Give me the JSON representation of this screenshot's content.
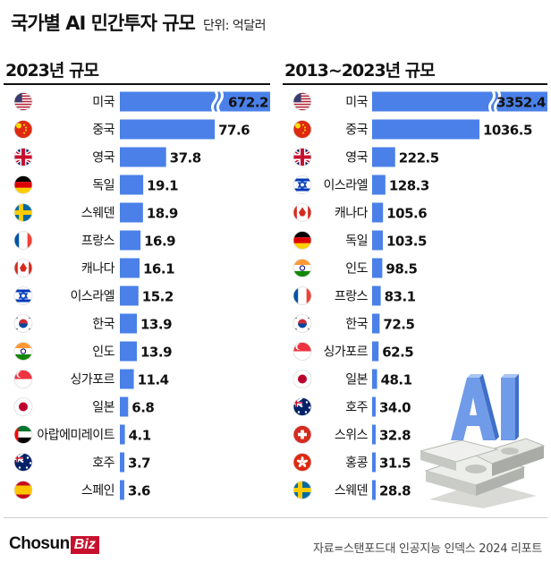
{
  "header": {
    "title": "국가별 AI 민간투자 규모",
    "unit": "단위: 억달러"
  },
  "footer": {
    "brand_main": "Chosun",
    "brand_accent": "Biz",
    "source": "자료=스탠포드대 인공지능 인덱스 2024 리포트"
  },
  "colors": {
    "bar": "#4a80e8",
    "brand_accent": "#c8102e"
  },
  "chart_data": [
    {
      "type": "bar",
      "orientation": "horizontal",
      "title": "2023년  규모",
      "axis_break": true,
      "categories": [
        "미국",
        "중국",
        "영국",
        "독일",
        "스웨덴",
        "프랑스",
        "캐나다",
        "이스라엘",
        "한국",
        "인도",
        "싱가포르",
        "일본",
        "아랍에미레이트",
        "호주",
        "스페인"
      ],
      "values": [
        672.2,
        77.6,
        37.8,
        19.1,
        18.9,
        16.9,
        16.1,
        15.2,
        13.9,
        13.9,
        11.4,
        6.8,
        4.1,
        3.7,
        3.6
      ],
      "value_labels": [
        "672.2",
        "77.6",
        "37.8",
        "19.1",
        "18.9",
        "16.9",
        "16.1",
        "15.2",
        "13.9",
        "13.9",
        "11.4",
        "6.8",
        "4.1",
        "3.7",
        "3.6"
      ],
      "flags": [
        "us-flag-icon",
        "cn-flag-icon",
        "gb-flag-icon",
        "de-flag-icon",
        "se-flag-icon",
        "fr-flag-icon",
        "ca-flag-icon",
        "il-flag-icon",
        "kr-flag-icon",
        "in-flag-icon",
        "sg-flag-icon",
        "jp-flag-icon",
        "ae-flag-icon",
        "au-flag-icon",
        "es-flag-icon"
      ]
    },
    {
      "type": "bar",
      "orientation": "horizontal",
      "title": "2013~2023년 규모",
      "axis_break": true,
      "categories": [
        "미국",
        "중국",
        "영국",
        "이스라엘",
        "캐나다",
        "독일",
        "인도",
        "프랑스",
        "한국",
        "싱가포르",
        "일본",
        "호주",
        "스위스",
        "홍콩",
        "스웨덴"
      ],
      "values": [
        3352.4,
        1036.5,
        222.5,
        128.3,
        105.6,
        103.5,
        98.5,
        83.1,
        72.5,
        62.5,
        48.1,
        34.0,
        32.8,
        31.5,
        28.8
      ],
      "value_labels": [
        "3352.4",
        "1036.5",
        "222.5",
        "128.3",
        "105.6",
        "103.5",
        "98.5",
        "83.1",
        "72.5",
        "62.5",
        "48.1",
        "34.0",
        "32.8",
        "31.5",
        "28.8"
      ],
      "flags": [
        "us-flag-icon",
        "cn-flag-icon",
        "gb-flag-icon",
        "il-flag-icon",
        "ca-flag-icon",
        "de-flag-icon",
        "in-flag-icon",
        "fr-flag-icon",
        "kr-flag-icon",
        "sg-flag-icon",
        "jp-flag-icon",
        "au-flag-icon",
        "ch-flag-icon",
        "hk-flag-icon",
        "se-flag-icon"
      ]
    }
  ]
}
